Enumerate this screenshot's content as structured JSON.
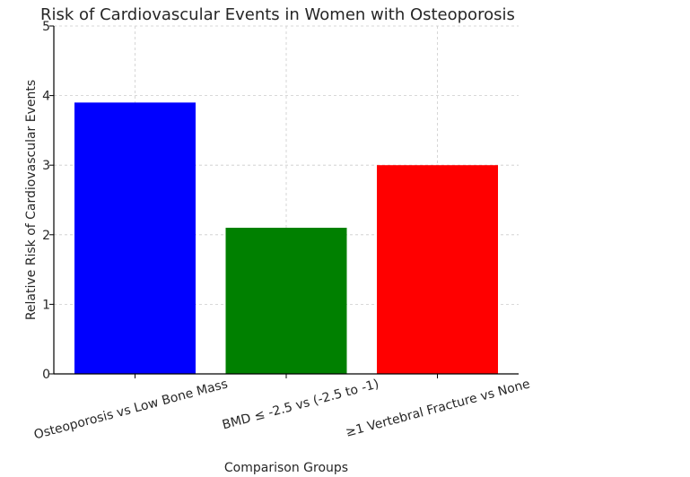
{
  "chart_data": {
    "type": "bar",
    "title": "Risk of Cardiovascular Events in Women with Osteoporosis",
    "xlabel": "Comparison Groups",
    "ylabel": "Relative Risk of Cardiovascular Events",
    "categories": [
      "Osteoporosis vs Low Bone Mass",
      "BMD ≤ -2.5 vs (-2.5 to -1)",
      "≥1 Vertebral Fracture vs None"
    ],
    "values": [
      3.9,
      2.1,
      3.0
    ],
    "colors": [
      "#0000ff",
      "#008000",
      "#ff0000"
    ],
    "ylim": [
      0,
      5
    ],
    "yticks": [
      "0",
      "1",
      "2",
      "3",
      "4",
      "5"
    ],
    "grid": true,
    "legend": "none"
  }
}
